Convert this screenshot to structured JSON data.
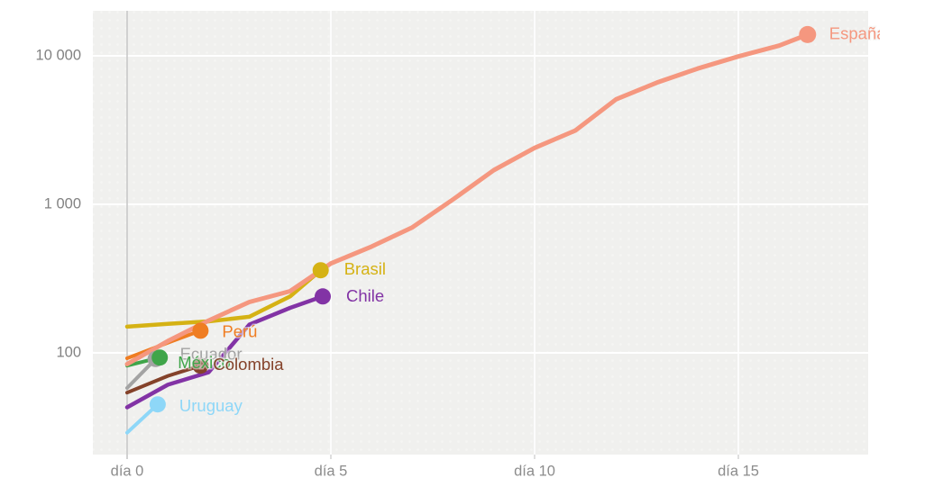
{
  "chart_data": {
    "type": "line",
    "title": "",
    "x_axis": {
      "label": "",
      "tick_labels": [
        "día 0",
        "día 5",
        "día 10",
        "día 15"
      ],
      "tick_days": [
        0,
        5,
        10,
        15
      ],
      "range_days": [
        0,
        18.2
      ],
      "grid": true
    },
    "y_axis": {
      "label": "",
      "scale": "log",
      "tick_labels": [
        "100",
        "1 000",
        "10 000"
      ],
      "tick_values": [
        100,
        1000,
        10000
      ],
      "range": [
        21,
        16000
      ],
      "grid": true
    },
    "legend_position": "end-of-line-labels",
    "series": [
      {
        "name": "Ecuador",
        "color": "#a3a3a3",
        "line_width": 4,
        "points": [
          [
            0,
            58
          ],
          [
            0.7,
            91
          ]
        ],
        "label_dx": 27,
        "label_dy": -4
      },
      {
        "name": "México",
        "color": "#3fa549",
        "line_width": 4,
        "points": [
          [
            0,
            82
          ],
          [
            0.8,
            93
          ]
        ],
        "label_dx": 20,
        "label_dy": 7
      },
      {
        "name": "Uruguay",
        "color": "#8ed7f8",
        "line_width": 4,
        "points": [
          [
            0,
            29
          ],
          [
            0.75,
            45
          ]
        ],
        "label_dx": 24,
        "label_dy": 3
      },
      {
        "name": "Colombia",
        "color": "#84422a",
        "line_width": 4,
        "points": [
          [
            0,
            54
          ],
          [
            1,
            70
          ],
          [
            1.8,
            82
          ]
        ],
        "label_dx": 14,
        "label_dy": 0
      },
      {
        "name": "Perú",
        "color": "#ef7d22",
        "line_width": 4,
        "points": [
          [
            0,
            92
          ],
          [
            1,
            117
          ],
          [
            1.8,
            141
          ]
        ],
        "label_dx": 24,
        "label_dy": 2
      },
      {
        "name": "Brasil",
        "color": "#d5b214",
        "line_width": 4.5,
        "points": [
          [
            0,
            150
          ],
          [
            1,
            157
          ],
          [
            2,
            163
          ],
          [
            3,
            175
          ],
          [
            4,
            240
          ],
          [
            4.75,
            360
          ]
        ],
        "label_dx": 26,
        "label_dy": 0
      },
      {
        "name": "Chile",
        "color": "#8233a5",
        "line_width": 4.5,
        "points": [
          [
            0,
            43
          ],
          [
            1,
            61
          ],
          [
            2,
            74
          ],
          [
            3,
            155
          ],
          [
            4,
            201
          ],
          [
            4.8,
            240
          ]
        ],
        "label_dx": 26,
        "label_dy": 1
      },
      {
        "name": "España",
        "color": "#f5977f",
        "line_width": 5,
        "points": [
          [
            0,
            84
          ],
          [
            1,
            120
          ],
          [
            2,
            165
          ],
          [
            3,
            220
          ],
          [
            4,
            260
          ],
          [
            5,
            400
          ],
          [
            6,
            520
          ],
          [
            7,
            700
          ],
          [
            8,
            1080
          ],
          [
            9,
            1700
          ],
          [
            10,
            2400
          ],
          [
            11,
            3140
          ],
          [
            12,
            5100
          ],
          [
            13,
            6600
          ],
          [
            14,
            8200
          ],
          [
            15,
            9900
          ],
          [
            16,
            11700
          ],
          [
            16.7,
            13900
          ]
        ],
        "label_dx": 24,
        "label_dy": 0
      }
    ],
    "colors": {
      "plot_background": "#f0f0ee",
      "plot_dot_texture": "#f5f5f3",
      "major_gridline": "#ffffff",
      "day_zero_axis_line": "#c5c5c5",
      "tick_mark": "#c9c9c9",
      "x_tick_text": "#8c8c8c",
      "y_tick_text": "#828282",
      "page_background": "#ffffff"
    }
  }
}
